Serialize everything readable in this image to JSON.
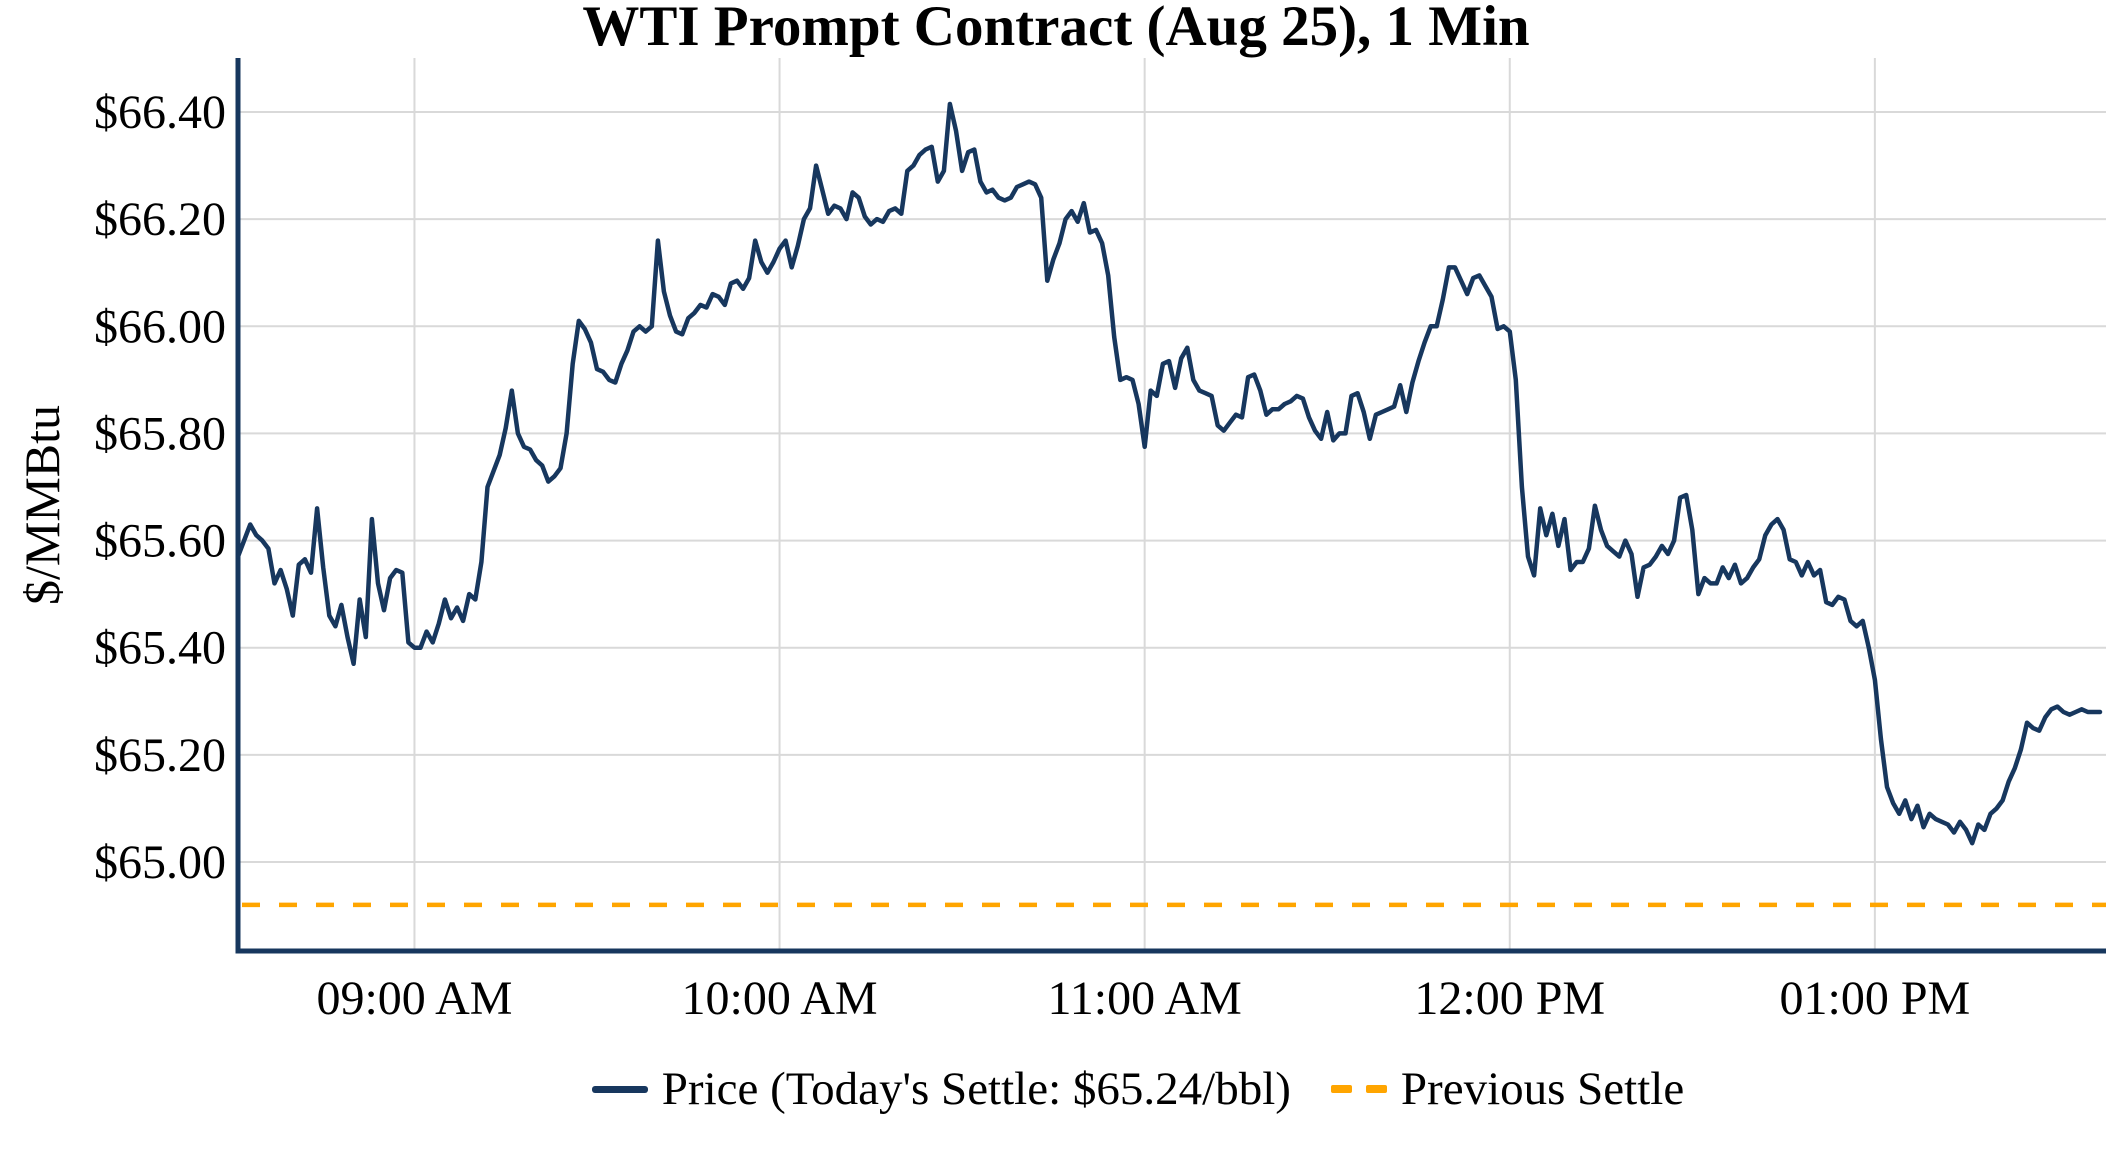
{
  "title": "WTI Prompt Contract (Aug 25), 1 Min",
  "colors": {
    "price": "#17375e",
    "axis": "#17375e",
    "previous_settle": "#ffa500",
    "grid": "#d9d9d9",
    "text": "#000000"
  },
  "legend": {
    "price_label": "Price (Today's Settle: $65.24/bbl)",
    "previous_settle_label": "Previous Settle"
  },
  "chart_data": {
    "type": "line",
    "title": "WTI Prompt Contract (Aug 25), 1 Min",
    "xlabel": "",
    "ylabel": "$/MMBtu",
    "legend_position": "bottom",
    "grid": true,
    "ylim": [
      64.83,
      66.5
    ],
    "y_ticks": [
      {
        "value": 66.4,
        "label": "$66.40"
      },
      {
        "value": 66.2,
        "label": "$66.20"
      },
      {
        "value": 66.0,
        "label": "$66.00"
      },
      {
        "value": 65.8,
        "label": "$65.80"
      },
      {
        "value": 65.6,
        "label": "$65.60"
      },
      {
        "value": 65.4,
        "label": "$65.40"
      },
      {
        "value": 65.2,
        "label": "$65.20"
      },
      {
        "value": 65.0,
        "label": "$65.00"
      }
    ],
    "x_start_time": "08:31 AM",
    "x_end_time": "01:37 PM",
    "interval_minutes": 1,
    "total_minutes": 306,
    "x_ticks": [
      {
        "minute": 29,
        "label": "09:00 AM"
      },
      {
        "minute": 89,
        "label": "10:00 AM"
      },
      {
        "minute": 149,
        "label": "11:00 AM"
      },
      {
        "minute": 209,
        "label": "12:00 PM"
      },
      {
        "minute": 269,
        "label": "01:00 PM"
      }
    ],
    "previous_settle": 64.92,
    "todays_settle": 65.24,
    "series": [
      {
        "name": "Price",
        "values": [
          65.57,
          65.6,
          65.63,
          65.61,
          65.6,
          65.585,
          65.52,
          65.545,
          65.51,
          65.46,
          65.555,
          65.565,
          65.54,
          65.66,
          65.55,
          65.46,
          65.44,
          65.48,
          65.42,
          65.37,
          65.49,
          65.42,
          65.64,
          65.52,
          65.47,
          65.53,
          65.545,
          65.54,
          65.41,
          65.4,
          65.4,
          65.43,
          65.41,
          65.445,
          65.49,
          65.455,
          65.475,
          65.45,
          65.5,
          65.49,
          65.56,
          65.7,
          65.73,
          65.76,
          65.81,
          65.88,
          65.8,
          65.775,
          65.77,
          65.75,
          65.74,
          65.71,
          65.72,
          65.735,
          65.8,
          65.93,
          66.01,
          65.995,
          65.97,
          65.92,
          65.915,
          65.9,
          65.895,
          65.93,
          65.955,
          65.99,
          66.0,
          65.99,
          66.0,
          66.16,
          66.065,
          66.02,
          65.99,
          65.985,
          66.015,
          66.025,
          66.04,
          66.035,
          66.06,
          66.055,
          66.04,
          66.08,
          66.085,
          66.07,
          66.09,
          66.16,
          66.12,
          66.1,
          66.12,
          66.145,
          66.16,
          66.11,
          66.15,
          66.2,
          66.22,
          66.3,
          66.255,
          66.21,
          66.225,
          66.22,
          66.2,
          66.25,
          66.24,
          66.205,
          66.19,
          66.2,
          66.195,
          66.215,
          66.22,
          66.21,
          66.29,
          66.3,
          66.32,
          66.33,
          66.335,
          66.27,
          66.29,
          66.415,
          66.365,
          66.29,
          66.325,
          66.33,
          66.27,
          66.25,
          66.255,
          66.24,
          66.235,
          66.24,
          66.26,
          66.265,
          66.27,
          66.265,
          66.24,
          66.085,
          66.125,
          66.155,
          66.2,
          66.215,
          66.195,
          66.23,
          66.175,
          66.18,
          66.155,
          66.095,
          65.98,
          65.9,
          65.905,
          65.9,
          65.855,
          65.775,
          65.88,
          65.87,
          65.93,
          65.935,
          65.885,
          65.94,
          65.96,
          65.9,
          65.88,
          65.875,
          65.87,
          65.815,
          65.805,
          65.82,
          65.835,
          65.83,
          65.905,
          65.91,
          65.88,
          65.835,
          65.845,
          65.845,
          65.855,
          65.86,
          65.87,
          65.865,
          65.83,
          65.805,
          65.79,
          65.84,
          65.787,
          65.8,
          65.8,
          65.87,
          65.875,
          65.84,
          65.79,
          65.835,
          65.84,
          65.845,
          65.85,
          65.89,
          65.84,
          65.895,
          65.935,
          65.97,
          66.0,
          66.0,
          66.05,
          66.11,
          66.11,
          66.085,
          66.06,
          66.09,
          66.095,
          66.075,
          66.055,
          65.995,
          66.0,
          65.99,
          65.9,
          65.7,
          65.57,
          65.535,
          65.66,
          65.61,
          65.65,
          65.59,
          65.64,
          65.545,
          65.56,
          65.56,
          65.585,
          65.665,
          65.62,
          65.59,
          65.58,
          65.57,
          65.6,
          65.575,
          65.495,
          65.55,
          65.555,
          65.57,
          65.59,
          65.575,
          65.6,
          65.68,
          65.685,
          65.62,
          65.5,
          65.53,
          65.52,
          65.52,
          65.55,
          65.53,
          65.555,
          65.52,
          65.53,
          65.55,
          65.565,
          65.61,
          65.63,
          65.64,
          65.62,
          65.565,
          65.56,
          65.535,
          65.56,
          65.535,
          65.545,
          65.485,
          65.48,
          65.495,
          65.49,
          65.45,
          65.44,
          65.45,
          65.4,
          65.34,
          65.23,
          65.14,
          65.11,
          65.09,
          65.115,
          65.08,
          65.105,
          65.065,
          65.09,
          65.08,
          65.075,
          65.07,
          65.055,
          65.075,
          65.06,
          65.035,
          65.07,
          65.06,
          65.09,
          65.1,
          65.115,
          65.15,
          65.175,
          65.21,
          65.26,
          65.25,
          65.245,
          65.27,
          65.285,
          65.29,
          65.28,
          65.275,
          65.28,
          65.285,
          65.28,
          65.28,
          65.28
        ]
      }
    ]
  }
}
